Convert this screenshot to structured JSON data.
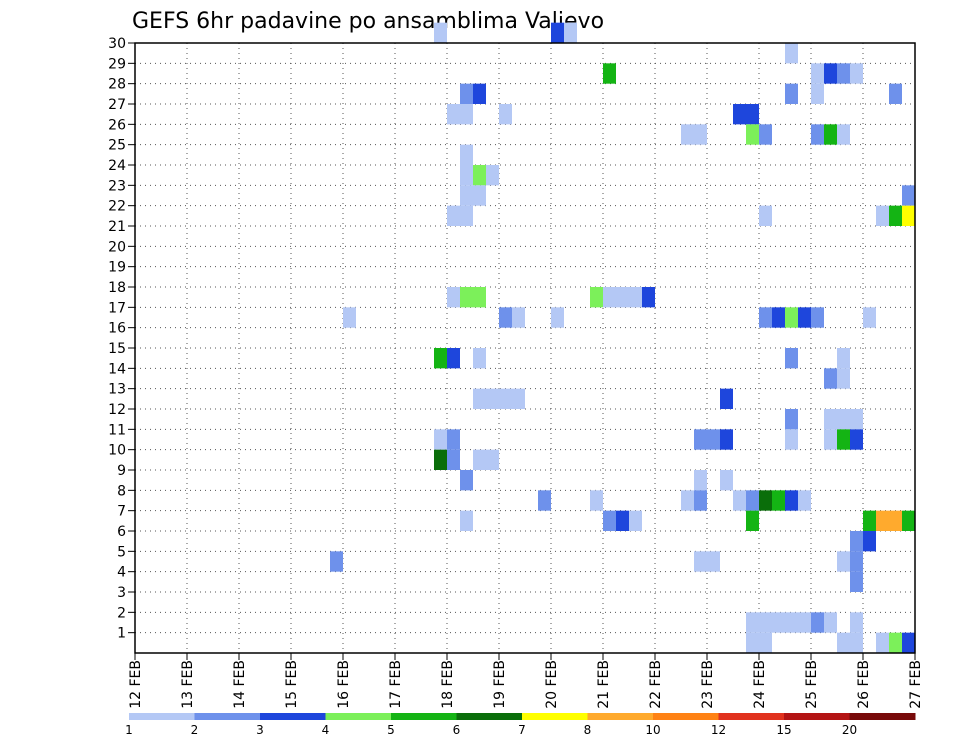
{
  "chart_data": {
    "type": "heatmap",
    "title": "GEFS 6hr padavine po ansamblima Valjevo",
    "xlabel": "",
    "ylabel": "",
    "x_ticks": [
      "12 FEB",
      "13 FEB",
      "14 FEB",
      "15 FEB",
      "16 FEB",
      "17 FEB",
      "18 FEB",
      "19 FEB",
      "20 FEB",
      "21 FEB",
      "22 FEB",
      "23 FEB",
      "24 FEB",
      "25 FEB",
      "26 FEB",
      "27 FEB"
    ],
    "y_ticks": [
      1,
      2,
      3,
      4,
      5,
      6,
      7,
      8,
      9,
      10,
      11,
      12,
      13,
      14,
      15,
      16,
      17,
      18,
      19,
      20,
      21,
      22,
      23,
      24,
      25,
      26,
      27,
      28,
      29,
      30
    ],
    "x_range_days": [
      12,
      27
    ],
    "y_range": [
      0,
      30
    ],
    "grid": true,
    "time_step_hours": 6,
    "colorbar": {
      "levels": [
        1,
        2,
        3,
        4,
        5,
        6,
        7,
        8,
        10,
        12,
        15,
        20
      ],
      "colors": [
        "#b4c8f5",
        "#6e91eb",
        "#1e46dc",
        "#7cf05a",
        "#14b414",
        "#0a6e0a",
        "#ffff00",
        "#ffaa2d",
        "#ff8214",
        "#e1321e",
        "#b41414",
        "#780a0a"
      ]
    },
    "cells": [
      {
        "d": "17 FEB 18Z",
        "m": 30,
        "v": 1
      },
      {
        "d": "20 FEB 00Z",
        "m": 30,
        "v": 3
      },
      {
        "d": "20 FEB 06Z",
        "m": 30,
        "v": 1
      },
      {
        "d": "24 FEB 12Z",
        "m": 29,
        "v": 1
      },
      {
        "d": "21 FEB 00Z",
        "m": 28,
        "v": 5
      },
      {
        "d": "25 FEB 00Z",
        "m": 28,
        "v": 1
      },
      {
        "d": "25 FEB 06Z",
        "m": 28,
        "v": 3
      },
      {
        "d": "25 FEB 12Z",
        "m": 28,
        "v": 2
      },
      {
        "d": "25 FEB 18Z",
        "m": 28,
        "v": 1
      },
      {
        "d": "18 FEB 06Z",
        "m": 27,
        "v": 2
      },
      {
        "d": "18 FEB 12Z",
        "m": 27,
        "v": 3
      },
      {
        "d": "24 FEB 12Z",
        "m": 27,
        "v": 2
      },
      {
        "d": "25 FEB 00Z",
        "m": 27,
        "v": 1
      },
      {
        "d": "26 FEB 12Z",
        "m": 27,
        "v": 2
      },
      {
        "d": "18 FEB 00Z",
        "m": 26,
        "v": 1
      },
      {
        "d": "18 FEB 06Z",
        "m": 26,
        "v": 1
      },
      {
        "d": "19 FEB 00Z",
        "m": 26,
        "v": 1
      },
      {
        "d": "23 FEB 12Z",
        "m": 26,
        "v": 3
      },
      {
        "d": "23 FEB 18Z",
        "m": 26,
        "v": 3
      },
      {
        "d": "22 FEB 12Z",
        "m": 25,
        "v": 1
      },
      {
        "d": "22 FEB 18Z",
        "m": 25,
        "v": 1
      },
      {
        "d": "23 FEB 18Z",
        "m": 25,
        "v": 4
      },
      {
        "d": "24 FEB 00Z",
        "m": 25,
        "v": 2
      },
      {
        "d": "25 FEB 00Z",
        "m": 25,
        "v": 2
      },
      {
        "d": "25 FEB 06Z",
        "m": 25,
        "v": 5
      },
      {
        "d": "25 FEB 12Z",
        "m": 25,
        "v": 1
      },
      {
        "d": "18 FEB 06Z",
        "m": 24,
        "v": 1
      },
      {
        "d": "18 FEB 06Z",
        "m": 23,
        "v": 1
      },
      {
        "d": "18 FEB 12Z",
        "m": 23,
        "v": 4
      },
      {
        "d": "18 FEB 18Z",
        "m": 23,
        "v": 1
      },
      {
        "d": "18 FEB 06Z",
        "m": 22,
        "v": 1
      },
      {
        "d": "18 FEB 12Z",
        "m": 22,
        "v": 1
      },
      {
        "d": "26 FEB 18Z",
        "m": 22,
        "v": 2
      },
      {
        "d": "18 FEB 00Z",
        "m": 21,
        "v": 1
      },
      {
        "d": "18 FEB 06Z",
        "m": 21,
        "v": 1
      },
      {
        "d": "24 FEB 00Z",
        "m": 21,
        "v": 1
      },
      {
        "d": "26 FEB 06Z",
        "m": 21,
        "v": 1
      },
      {
        "d": "26 FEB 12Z",
        "m": 21,
        "v": 5
      },
      {
        "d": "26 FEB 18Z",
        "m": 21,
        "v": 7
      },
      {
        "d": "18 FEB 00Z",
        "m": 17,
        "v": 1
      },
      {
        "d": "18 FEB 06Z",
        "m": 17,
        "v": 4
      },
      {
        "d": "18 FEB 12Z",
        "m": 17,
        "v": 4
      },
      {
        "d": "20 FEB 18Z",
        "m": 17,
        "v": 4
      },
      {
        "d": "21 FEB 00Z",
        "m": 17,
        "v": 1
      },
      {
        "d": "21 FEB 06Z",
        "m": 17,
        "v": 1
      },
      {
        "d": "21 FEB 12Z",
        "m": 17,
        "v": 1
      },
      {
        "d": "21 FEB 18Z",
        "m": 17,
        "v": 3
      },
      {
        "d": "16 FEB 00Z",
        "m": 16,
        "v": 1
      },
      {
        "d": "19 FEB 00Z",
        "m": 16,
        "v": 2
      },
      {
        "d": "19 FEB 06Z",
        "m": 16,
        "v": 1
      },
      {
        "d": "20 FEB 00Z",
        "m": 16,
        "v": 1
      },
      {
        "d": "24 FEB 00Z",
        "m": 16,
        "v": 2
      },
      {
        "d": "24 FEB 06Z",
        "m": 16,
        "v": 3
      },
      {
        "d": "24 FEB 12Z",
        "m": 16,
        "v": 4
      },
      {
        "d": "24 FEB 18Z",
        "m": 16,
        "v": 3
      },
      {
        "d": "25 FEB 00Z",
        "m": 16,
        "v": 2
      },
      {
        "d": "26 FEB 00Z",
        "m": 16,
        "v": 1
      },
      {
        "d": "17 FEB 18Z",
        "m": 14,
        "v": 5
      },
      {
        "d": "18 FEB 00Z",
        "m": 14,
        "v": 3
      },
      {
        "d": "18 FEB 12Z",
        "m": 14,
        "v": 1
      },
      {
        "d": "24 FEB 12Z",
        "m": 14,
        "v": 2
      },
      {
        "d": "25 FEB 12Z",
        "m": 14,
        "v": 1
      },
      {
        "d": "25 FEB 06Z",
        "m": 13,
        "v": 2
      },
      {
        "d": "25 FEB 12Z",
        "m": 13,
        "v": 1
      },
      {
        "d": "18 FEB 12Z",
        "m": 12,
        "v": 1
      },
      {
        "d": "18 FEB 18Z",
        "m": 12,
        "v": 1
      },
      {
        "d": "19 FEB 00Z",
        "m": 12,
        "v": 1
      },
      {
        "d": "19 FEB 06Z",
        "m": 12,
        "v": 1
      },
      {
        "d": "23 FEB 06Z",
        "m": 12,
        "v": 3
      },
      {
        "d": "24 FEB 12Z",
        "m": 11,
        "v": 2
      },
      {
        "d": "25 FEB 06Z",
        "m": 11,
        "v": 1
      },
      {
        "d": "25 FEB 12Z",
        "m": 11,
        "v": 1
      },
      {
        "d": "25 FEB 18Z",
        "m": 11,
        "v": 1
      },
      {
        "d": "17 FEB 18Z",
        "m": 10,
        "v": 1
      },
      {
        "d": "18 FEB 00Z",
        "m": 10,
        "v": 2
      },
      {
        "d": "22 FEB 18Z",
        "m": 10,
        "v": 2
      },
      {
        "d": "23 FEB 00Z",
        "m": 10,
        "v": 2
      },
      {
        "d": "23 FEB 06Z",
        "m": 10,
        "v": 3
      },
      {
        "d": "24 FEB 12Z",
        "m": 10,
        "v": 1
      },
      {
        "d": "25 FEB 06Z",
        "m": 10,
        "v": 1
      },
      {
        "d": "25 FEB 12Z",
        "m": 10,
        "v": 5
      },
      {
        "d": "25 FEB 18Z",
        "m": 10,
        "v": 3
      },
      {
        "d": "17 FEB 18Z",
        "m": 9,
        "v": 6
      },
      {
        "d": "18 FEB 00Z",
        "m": 9,
        "v": 2
      },
      {
        "d": "18 FEB 12Z",
        "m": 9,
        "v": 1
      },
      {
        "d": "18 FEB 18Z",
        "m": 9,
        "v": 1
      },
      {
        "d": "18 FEB 06Z",
        "m": 8,
        "v": 2
      },
      {
        "d": "22 FEB 18Z",
        "m": 8,
        "v": 1
      },
      {
        "d": "23 FEB 06Z",
        "m": 8,
        "v": 1
      },
      {
        "d": "19 FEB 18Z",
        "m": 7,
        "v": 2
      },
      {
        "d": "20 FEB 18Z",
        "m": 7,
        "v": 1
      },
      {
        "d": "22 FEB 12Z",
        "m": 7,
        "v": 1
      },
      {
        "d": "22 FEB 18Z",
        "m": 7,
        "v": 2
      },
      {
        "d": "23 FEB 12Z",
        "m": 7,
        "v": 1
      },
      {
        "d": "23 FEB 18Z",
        "m": 7,
        "v": 2
      },
      {
        "d": "24 FEB 00Z",
        "m": 7,
        "v": 6
      },
      {
        "d": "24 FEB 06Z",
        "m": 7,
        "v": 5
      },
      {
        "d": "24 FEB 12Z",
        "m": 7,
        "v": 3
      },
      {
        "d": "24 FEB 18Z",
        "m": 7,
        "v": 1
      },
      {
        "d": "18 FEB 06Z",
        "m": 6,
        "v": 1
      },
      {
        "d": "21 FEB 00Z",
        "m": 6,
        "v": 2
      },
      {
        "d": "21 FEB 06Z",
        "m": 6,
        "v": 3
      },
      {
        "d": "21 FEB 12Z",
        "m": 6,
        "v": 1
      },
      {
        "d": "23 FEB 18Z",
        "m": 6,
        "v": 5
      },
      {
        "d": "26 FEB 00Z",
        "m": 6,
        "v": 5
      },
      {
        "d": "26 FEB 06Z",
        "m": 6,
        "v": 8
      },
      {
        "d": "26 FEB 12Z",
        "m": 6,
        "v": 8
      },
      {
        "d": "26 FEB 18Z",
        "m": 6,
        "v": 5
      },
      {
        "d": "25 FEB 18Z",
        "m": 5,
        "v": 2
      },
      {
        "d": "26 FEB 00Z",
        "m": 5,
        "v": 3
      },
      {
        "d": "15 FEB 18Z",
        "m": 4,
        "v": 2
      },
      {
        "d": "22 FEB 18Z",
        "m": 4,
        "v": 1
      },
      {
        "d": "23 FEB 00Z",
        "m": 4,
        "v": 1
      },
      {
        "d": "25 FEB 12Z",
        "m": 4,
        "v": 1
      },
      {
        "d": "25 FEB 18Z",
        "m": 4,
        "v": 2
      },
      {
        "d": "25 FEB 18Z",
        "m": 3,
        "v": 2
      },
      {
        "d": "23 FEB 18Z",
        "m": 1,
        "v": 1
      },
      {
        "d": "24 FEB 00Z",
        "m": 1,
        "v": 1
      },
      {
        "d": "24 FEB 06Z",
        "m": 1,
        "v": 1
      },
      {
        "d": "24 FEB 12Z",
        "m": 1,
        "v": 1
      },
      {
        "d": "24 FEB 18Z",
        "m": 1,
        "v": 1
      },
      {
        "d": "25 FEB 00Z",
        "m": 1,
        "v": 2
      },
      {
        "d": "25 FEB 06Z",
        "m": 1,
        "v": 1
      },
      {
        "d": "25 FEB 18Z",
        "m": 1,
        "v": 1
      },
      {
        "d": "23 FEB 18Z",
        "m": 0,
        "v": 1
      },
      {
        "d": "24 FEB 00Z",
        "m": 0,
        "v": 1
      },
      {
        "d": "25 FEB 12Z",
        "m": 0,
        "v": 1
      },
      {
        "d": "25 FEB 18Z",
        "m": 0,
        "v": 1
      },
      {
        "d": "26 FEB 06Z",
        "m": 0,
        "v": 1
      },
      {
        "d": "26 FEB 12Z",
        "m": 0,
        "v": 4
      },
      {
        "d": "26 FEB 18Z",
        "m": 0,
        "v": 3
      }
    ]
  }
}
